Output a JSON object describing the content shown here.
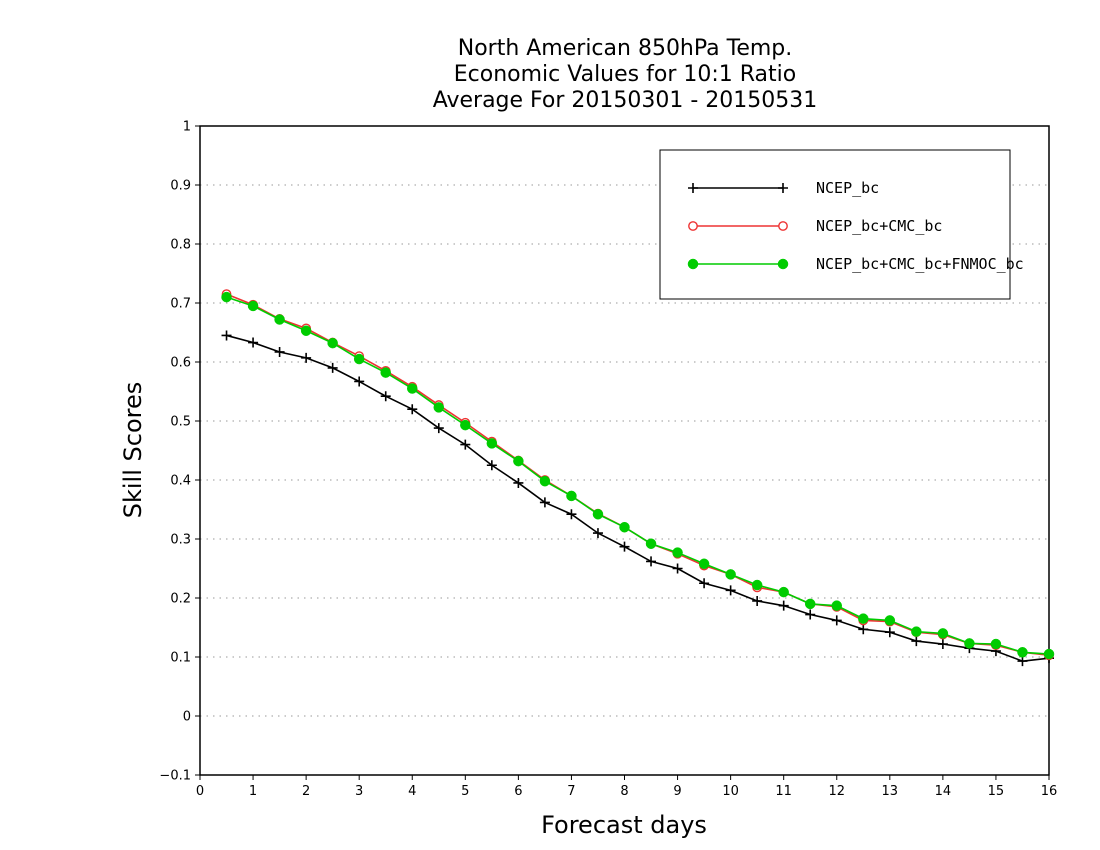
{
  "chart_data": {
    "type": "line",
    "title": [
      "North American 850hPa Temp.",
      "Economic Values for 10:1 Ratio",
      "Average For 20150301 - 20150531"
    ],
    "xlabel": "Forecast days",
    "ylabel": "Skill Scores",
    "xlim": [
      0,
      16
    ],
    "ylim": [
      -0.1,
      1
    ],
    "xticks": [
      0,
      1,
      2,
      3,
      4,
      5,
      6,
      7,
      8,
      9,
      10,
      11,
      12,
      13,
      14,
      15,
      16
    ],
    "yticks": [
      -0.1,
      0,
      0.1,
      0.2,
      0.3,
      0.4,
      0.5,
      0.6,
      0.7,
      0.8,
      0.9,
      1
    ],
    "grid": true,
    "legend_position": "top-right",
    "x": [
      0.5,
      1,
      1.5,
      2,
      2.5,
      3,
      3.5,
      4,
      4.5,
      5,
      5.5,
      6,
      6.5,
      7,
      7.5,
      8,
      8.5,
      9,
      9.5,
      10,
      10.5,
      11,
      11.5,
      12,
      12.5,
      13,
      13.5,
      14,
      14.5,
      15,
      15.5,
      16
    ],
    "series": [
      {
        "name": "NCEP_bc",
        "color": "#000000",
        "marker": "plus",
        "values": [
          0.645,
          0.633,
          0.617,
          0.607,
          0.59,
          0.567,
          0.542,
          0.52,
          0.488,
          0.46,
          0.425,
          0.395,
          0.362,
          0.342,
          0.31,
          0.287,
          0.262,
          0.25,
          0.225,
          0.213,
          0.195,
          0.187,
          0.172,
          0.162,
          0.147,
          0.142,
          0.127,
          0.122,
          0.115,
          0.11,
          0.093,
          0.098
        ]
      },
      {
        "name": "NCEP_bc+CMC_bc",
        "color": "#ee3333",
        "marker": "open-circle",
        "values": [
          0.715,
          0.697,
          0.673,
          0.657,
          0.633,
          0.61,
          0.585,
          0.558,
          0.527,
          0.497,
          0.465,
          0.433,
          0.4,
          0.373,
          0.343,
          0.32,
          0.292,
          0.275,
          0.255,
          0.24,
          0.218,
          0.21,
          0.19,
          0.185,
          0.162,
          0.16,
          0.142,
          0.138,
          0.123,
          0.12,
          0.108,
          0.103
        ]
      },
      {
        "name": "NCEP_bc+CMC_bc+FNMOC_bc",
        "color": "#00cc00",
        "marker": "filled-circle",
        "values": [
          0.71,
          0.695,
          0.672,
          0.653,
          0.632,
          0.605,
          0.582,
          0.555,
          0.523,
          0.493,
          0.462,
          0.432,
          0.398,
          0.373,
          0.342,
          0.32,
          0.292,
          0.277,
          0.258,
          0.24,
          0.222,
          0.21,
          0.19,
          0.187,
          0.165,
          0.162,
          0.143,
          0.14,
          0.123,
          0.122,
          0.108,
          0.105
        ]
      }
    ]
  }
}
